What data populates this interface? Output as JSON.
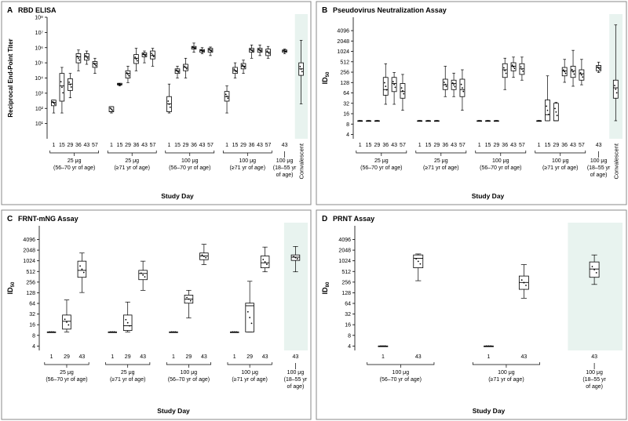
{
  "figure": {
    "panels": [
      {
        "letter": "A",
        "title": "RBD ELISA"
      },
      {
        "letter": "B",
        "title": "Pseudovirus Neutralization Assay"
      },
      {
        "letter": "C",
        "title": "FRNT-mNG Assay"
      },
      {
        "letter": "D",
        "title": "PRNT Assay"
      }
    ]
  },
  "chart_data": [
    {
      "panel": "A",
      "type": "box",
      "title": "RBD ELISA",
      "ylabel": "Reciprocal End-Point Titer",
      "xlabel": "Study Day",
      "yscale": "log10",
      "ylim": [
        1,
        100000000
      ],
      "yticks": [
        {
          "v": 10,
          "l": "10¹"
        },
        {
          "v": 100,
          "l": "10²"
        },
        {
          "v": 1000,
          "l": "10³"
        },
        {
          "v": 10000,
          "l": "10⁴"
        },
        {
          "v": 100000,
          "l": "10⁵"
        },
        {
          "v": 1000000,
          "l": "10⁶"
        },
        {
          "v": 10000000,
          "l": "10⁷"
        },
        {
          "v": 100000000,
          "l": "10⁸"
        }
      ],
      "groups": [
        {
          "l1": "25 μg",
          "l2": "(56–70 yr of age)",
          "days": [
            "1",
            "15",
            "29",
            "36",
            "43",
            "57"
          ],
          "boxes": [
            [
              50,
              150,
              250,
              350,
              350
            ],
            [
              50,
              300,
              3000,
              20000,
              50000
            ],
            [
              500,
              1500,
              4000,
              9000,
              20000
            ],
            [
              30000,
              100000,
              250000,
              400000,
              700000
            ],
            [
              80000,
              150000,
              250000,
              400000,
              600000
            ],
            [
              20000,
              50000,
              90000,
              120000,
              200000
            ]
          ]
        },
        {
          "l1": "25 μg",
          "l2": "(≥71 yr of age)",
          "days": [
            "1",
            "15",
            "29",
            "36",
            "43",
            "57"
          ],
          "boxes": [
            [
              50,
              60,
              60,
              130,
              130
            ],
            [
              3000,
              3500,
              3800,
              4500,
              4500
            ],
            [
              5000,
              10000,
              20000,
              30000,
              60000
            ],
            [
              30000,
              90000,
              200000,
              350000,
              900000
            ],
            [
              100000,
              250000,
              350000,
              450000,
              600000
            ],
            [
              60000,
              180000,
              300000,
              600000,
              900000
            ]
          ]
        },
        {
          "l1": "100 μg",
          "l2": "(56–70 yr of age)",
          "days": [
            "1",
            "15",
            "29",
            "36",
            "43",
            "57"
          ],
          "boxes": [
            [
              50,
              60,
              200,
              600,
              4000
            ],
            [
              10000,
              20000,
              30000,
              40000,
              60000
            ],
            [
              10000,
              30000,
              50000,
              80000,
              200000
            ],
            [
              500000,
              800000,
              1000000,
              1200000,
              2000000
            ],
            [
              400000,
              500000,
              650000,
              750000,
              1000000
            ],
            [
              300000,
              500000,
              700000,
              900000,
              1100000
            ]
          ]
        },
        {
          "l1": "100 μg",
          "l2": "(≥71 yr of age)",
          "days": [
            "1",
            "15",
            "29",
            "36",
            "43",
            "57"
          ],
          "boxes": [
            [
              50,
              300,
              600,
              1300,
              3000
            ],
            [
              10000,
              20000,
              30000,
              50000,
              100000
            ],
            [
              20000,
              40000,
              60000,
              90000,
              150000
            ],
            [
              200000,
              500000,
              700000,
              900000,
              1500000
            ],
            [
              300000,
              500000,
              700000,
              900000,
              1500000
            ],
            [
              200000,
              300000,
              500000,
              800000,
              1200000
            ]
          ]
        },
        {
          "l1": "100 μg",
          "l2": "(18–55 yr",
          "l3": "of age)",
          "days": [
            "43"
          ],
          "boxes": [
            [
              400000,
              500000,
              600000,
              700000,
              800000
            ]
          ]
        },
        {
          "l1": "",
          "l2": "",
          "days": [
            "Convalescent"
          ],
          "shaded": true,
          "boxes": [
            [
              200,
              15000,
              40000,
              100000,
              3000000
            ]
          ]
        }
      ]
    },
    {
      "panel": "B",
      "type": "box",
      "title": "Pseudovirus Neutralization Assay",
      "ylabel": "ID50",
      "xlabel": "Study Day",
      "yscale": "log2",
      "ylim": [
        3,
        10000
      ],
      "yticks": [
        {
          "v": 4,
          "l": "4"
        },
        {
          "v": 8,
          "l": "8"
        },
        {
          "v": 16,
          "l": "16"
        },
        {
          "v": 32,
          "l": "32"
        },
        {
          "v": 64,
          "l": "64"
        },
        {
          "v": 128,
          "l": "128"
        },
        {
          "v": 256,
          "l": "256"
        },
        {
          "v": 512,
          "l": "512"
        },
        {
          "v": 1024,
          "l": "1024"
        },
        {
          "v": 2048,
          "l": "2048"
        },
        {
          "v": 4096,
          "l": "4096"
        }
      ],
      "groups": [
        {
          "l1": "25 μg",
          "l2": "(56–70 yr of age)",
          "days": [
            "1",
            "15",
            "29",
            "36",
            "43",
            "57"
          ],
          "boxes": [
            [
              10,
              10,
              10,
              10,
              10
            ],
            [
              10,
              10,
              10,
              10,
              10
            ],
            [
              10,
              10,
              10,
              10,
              10
            ],
            [
              30,
              55,
              80,
              180,
              450
            ],
            [
              30,
              70,
              120,
              180,
              250
            ],
            [
              20,
              45,
              70,
              120,
              220
            ]
          ]
        },
        {
          "l1": "25 μg",
          "l2": "(≥71 yr of age)",
          "days": [
            "1",
            "15",
            "29",
            "36",
            "43",
            "57"
          ],
          "boxes": [
            [
              10,
              10,
              10,
              10,
              10
            ],
            [
              10,
              10,
              10,
              10,
              10
            ],
            [
              10,
              10,
              10,
              10,
              10
            ],
            [
              50,
              80,
              110,
              160,
              380
            ],
            [
              50,
              80,
              120,
              150,
              240
            ],
            [
              20,
              50,
              80,
              160,
              300
            ]
          ]
        },
        {
          "l1": "100 μg",
          "l2": "(56–70 yr of age)",
          "days": [
            "1",
            "15",
            "29",
            "36",
            "43",
            "57"
          ],
          "boxes": [
            [
              10,
              10,
              10,
              10,
              10
            ],
            [
              10,
              10,
              10,
              10,
              10
            ],
            [
              10,
              10,
              10,
              10,
              10
            ],
            [
              80,
              180,
              300,
              450,
              650
            ],
            [
              180,
              280,
              380,
              480,
              700
            ],
            [
              150,
              220,
              320,
              450,
              700
            ]
          ]
        },
        {
          "l1": "100 μg",
          "l2": "(≥71 yr of age)",
          "days": [
            "1",
            "15",
            "29",
            "36",
            "43",
            "57"
          ],
          "boxes": [
            [
              10,
              10,
              10,
              10,
              10
            ],
            [
              10,
              10,
              15,
              40,
              200
            ],
            [
              10,
              10,
              10,
              32,
              34
            ],
            [
              130,
              200,
              280,
              350,
              600
            ],
            [
              100,
              180,
              280,
              380,
              1100
            ],
            [
              110,
              150,
              230,
              300,
              600
            ]
          ]
        },
        {
          "l1": "100 μg",
          "l2": "(18–55 yr",
          "l3": "of age)",
          "days": [
            "43"
          ],
          "boxes": [
            [
              250,
              280,
              350,
              400,
              500
            ]
          ]
        },
        {
          "l1": "",
          "l2": "",
          "days": [
            "Convalescent"
          ],
          "shaded": true,
          "boxes": [
            [
              10,
              45,
              90,
              150,
              6000
            ]
          ]
        }
      ]
    },
    {
      "panel": "C",
      "type": "box",
      "title": "FRNT-mNG Assay",
      "ylabel": "ID50",
      "xlabel": "Study Day",
      "yscale": "log2",
      "ylim": [
        3,
        10000
      ],
      "yticks": [
        {
          "v": 4,
          "l": "4"
        },
        {
          "v": 8,
          "l": "8"
        },
        {
          "v": 16,
          "l": "16"
        },
        {
          "v": 32,
          "l": "32"
        },
        {
          "v": 64,
          "l": "64"
        },
        {
          "v": 128,
          "l": "128"
        },
        {
          "v": 256,
          "l": "256"
        },
        {
          "v": 512,
          "l": "512"
        },
        {
          "v": 1024,
          "l": "1024"
        },
        {
          "v": 2048,
          "l": "2048"
        },
        {
          "v": 4096,
          "l": "4096"
        }
      ],
      "groups": [
        {
          "l1": "25 μg",
          "l2": "(56–70 yr of age)",
          "days": [
            "1",
            "29",
            "43"
          ],
          "boxes": [
            [
              10,
              10,
              10,
              10,
              10
            ],
            [
              10,
              12,
              20,
              30,
              80
            ],
            [
              130,
              350,
              550,
              1000,
              1700
            ]
          ]
        },
        {
          "l1": "25 μg",
          "l2": "(≥71 yr of age)",
          "days": [
            "1",
            "29",
            "43"
          ],
          "boxes": [
            [
              10,
              10,
              10,
              10,
              10
            ],
            [
              10,
              11,
              15,
              30,
              70
            ],
            [
              150,
              300,
              450,
              550,
              1000
            ]
          ]
        },
        {
          "l1": "100 μg",
          "l2": "(56–70 yr of age)",
          "days": [
            "1",
            "29",
            "43"
          ],
          "boxes": [
            [
              10,
              10,
              10,
              10,
              10
            ],
            [
              25,
              65,
              85,
              110,
              150
            ],
            [
              800,
              1100,
              1400,
              1700,
              3000
            ]
          ]
        },
        {
          "l1": "100 μg",
          "l2": "(≥71 yr of age)",
          "days": [
            "1",
            "29",
            "43"
          ],
          "boxes": [
            [
              10,
              10,
              10,
              10,
              10
            ],
            [
              10,
              10,
              55,
              65,
              270
            ],
            [
              500,
              650,
              900,
              1400,
              2500
            ]
          ]
        },
        {
          "l1": "100 μg",
          "l2": "(18–55 yr",
          "l3": "of age)",
          "days": [
            "43"
          ],
          "shaded": true,
          "boxes": [
            [
              500,
              1050,
              1300,
              1500,
              2600
            ]
          ]
        }
      ]
    },
    {
      "panel": "D",
      "type": "box",
      "title": "PRNT Assay",
      "ylabel": "ID80",
      "xlabel": "Study Day",
      "yscale": "log2",
      "ylim": [
        3,
        10000
      ],
      "yticks": [
        {
          "v": 4,
          "l": "4"
        },
        {
          "v": 8,
          "l": "8"
        },
        {
          "v": 16,
          "l": "16"
        },
        {
          "v": 32,
          "l": "32"
        },
        {
          "v": 64,
          "l": "64"
        },
        {
          "v": 128,
          "l": "128"
        },
        {
          "v": 256,
          "l": "256"
        },
        {
          "v": 512,
          "l": "512"
        },
        {
          "v": 1024,
          "l": "1024"
        },
        {
          "v": 2048,
          "l": "2048"
        },
        {
          "v": 4096,
          "l": "4096"
        }
      ],
      "groups": [
        {
          "l1": "100 μg",
          "l2": "(56–70 yr of age)",
          "days": [
            "1",
            "43"
          ],
          "boxes": [
            [
              4,
              4,
              4,
              4,
              4
            ],
            [
              280,
              650,
              1200,
              1500,
              1600
            ]
          ]
        },
        {
          "l1": "100 μg",
          "l2": "(≥71 yr of age)",
          "days": [
            "1",
            "43"
          ],
          "boxes": [
            [
              4,
              4,
              4,
              4,
              4
            ],
            [
              90,
              160,
              250,
              380,
              800
            ]
          ]
        },
        {
          "l1": "100 μg",
          "l2": "(18–55 yr",
          "l3": "of age)",
          "days": [
            "43"
          ],
          "shaded": true,
          "boxes": [
            [
              220,
              350,
              600,
              950,
              1500
            ]
          ]
        }
      ]
    }
  ]
}
